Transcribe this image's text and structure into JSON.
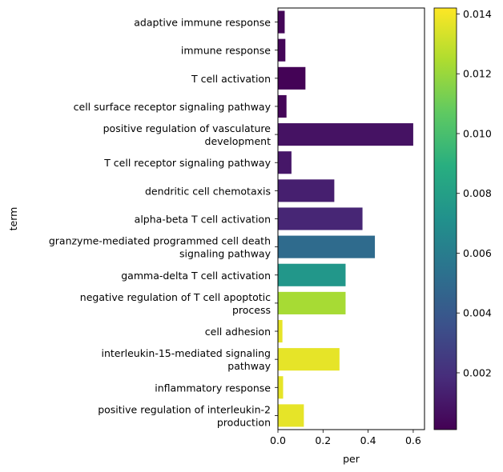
{
  "chart_data": {
    "type": "bar",
    "orientation": "horizontal",
    "categories": [
      [
        "adaptive immune response"
      ],
      [
        "immune response"
      ],
      [
        "T cell activation"
      ],
      [
        "cell surface receptor signaling pathway"
      ],
      [
        "positive regulation of vasculature",
        "development"
      ],
      [
        "T cell receptor signaling pathway"
      ],
      [
        "dendritic cell chemotaxis"
      ],
      [
        "alpha-beta T cell activation"
      ],
      [
        "granzyme-mediated programmed cell death",
        "signaling pathway"
      ],
      [
        "gamma-delta T cell activation"
      ],
      [
        "negative regulation of T cell apoptotic",
        "process"
      ],
      [
        "cell adhesion"
      ],
      [
        "interleukin-15-mediated signaling",
        "pathway"
      ],
      [
        "inflammatory response"
      ],
      [
        "positive regulation of interleukin-2",
        "production"
      ]
    ],
    "values": [
      0.03,
      0.033,
      0.122,
      0.038,
      0.6,
      0.06,
      0.25,
      0.375,
      0.43,
      0.3,
      0.3,
      0.02,
      0.273,
      0.023,
      0.115
    ],
    "color_values": [
      0.0003,
      0.0003,
      0.0002,
      0.0003,
      0.0008,
      0.001,
      0.0013,
      0.0016,
      0.005,
      0.0075,
      0.0123,
      0.0137,
      0.0137,
      0.0137,
      0.0137
    ],
    "xlabel": "per",
    "ylabel": "term",
    "xlim": [
      0,
      0.65
    ],
    "xticks": [
      0.0,
      0.2,
      0.4,
      0.6
    ],
    "xtick_labels": [
      "0.0",
      "0.2",
      "0.4",
      "0.6"
    ],
    "colorbar": {
      "cmap": "viridis",
      "range": [
        0.0001,
        0.0142
      ],
      "ticks": [
        0.002,
        0.004,
        0.006,
        0.008,
        0.01,
        0.012,
        0.014
      ],
      "tick_labels": [
        "0.002",
        "0.004",
        "0.006",
        "0.008",
        "0.010",
        "0.012",
        "0.014"
      ]
    }
  }
}
